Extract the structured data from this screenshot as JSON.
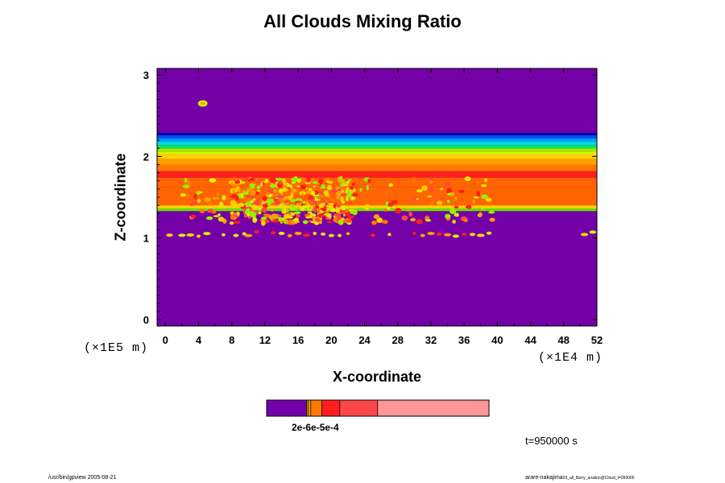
{
  "chart_data": {
    "type": "heatmap",
    "title": "All Clouds Mixing Ratio",
    "xlabel": "X-coordinate",
    "ylabel": "Z-coordinate",
    "xscale_label": "(×1E4 m)",
    "yscale_label": "(×1E5 m)",
    "xlim": [
      -1,
      52
    ],
    "ylim": [
      -0.08,
      3.08
    ],
    "xticks": [
      "0",
      "4",
      "8",
      "12",
      "16",
      "20",
      "24",
      "28",
      "32",
      "36",
      "40",
      "44",
      "48",
      "52"
    ],
    "yticks": [
      "0",
      "1",
      "2",
      "3"
    ],
    "field": {
      "background_color": "#7400a8",
      "layered_band_z": [
        1.33,
        2.29
      ],
      "band_layers": [
        {
          "z": [
            2.26,
            2.29
          ],
          "color": "#0000b4"
        },
        {
          "z": [
            2.22,
            2.26
          ],
          "color": "#0050e6"
        },
        {
          "z": [
            2.18,
            2.22
          ],
          "color": "#00a0ff"
        },
        {
          "z": [
            2.14,
            2.18
          ],
          "color": "#00dcdc"
        },
        {
          "z": [
            2.1,
            2.14
          ],
          "color": "#00e664"
        },
        {
          "z": [
            2.06,
            2.1
          ],
          "color": "#96f000"
        },
        {
          "z": [
            2.02,
            2.06
          ],
          "color": "#dcf000"
        },
        {
          "z": [
            1.97,
            2.02
          ],
          "color": "#ffd200"
        },
        {
          "z": [
            1.9,
            1.97
          ],
          "color": "#ffa000"
        },
        {
          "z": [
            1.82,
            1.9
          ],
          "color": "#ff7800"
        },
        {
          "z": [
            1.74,
            1.82
          ],
          "color": "#ff1e1e"
        },
        {
          "z": [
            1.62,
            1.74
          ],
          "color": "#ff6400"
        },
        {
          "z": [
            1.4,
            1.62
          ],
          "color": "#ff6400"
        },
        {
          "z": [
            1.36,
            1.4
          ],
          "color": "#ffd200"
        },
        {
          "z": [
            1.33,
            1.36
          ],
          "color": "#64e600"
        }
      ],
      "isolated_cloud": {
        "x": 4.5,
        "z": 2.65
      }
    },
    "colorbar": {
      "label": "2e-6e-5e-4",
      "segments": [
        {
          "color": "#7400a8",
          "weight": 18
        },
        {
          "color": "#ffd200",
          "weight": 0.6
        },
        {
          "color": "#ffa000",
          "weight": 1.2
        },
        {
          "color": "#ff7800",
          "weight": 5
        },
        {
          "color": "#ff1e1e",
          "weight": 8
        },
        {
          "color": "#ff4646",
          "weight": 17
        },
        {
          "color": "#ff9696",
          "weight": 50
        }
      ]
    },
    "time_label": "t=950000 s"
  },
  "footer": {
    "left": "/usr/bin/gpview 2005-08-21",
    "right_main": "arare-nakajima",
    "right_small": "03_all_Barry_analino@Cloud_t=950000"
  }
}
